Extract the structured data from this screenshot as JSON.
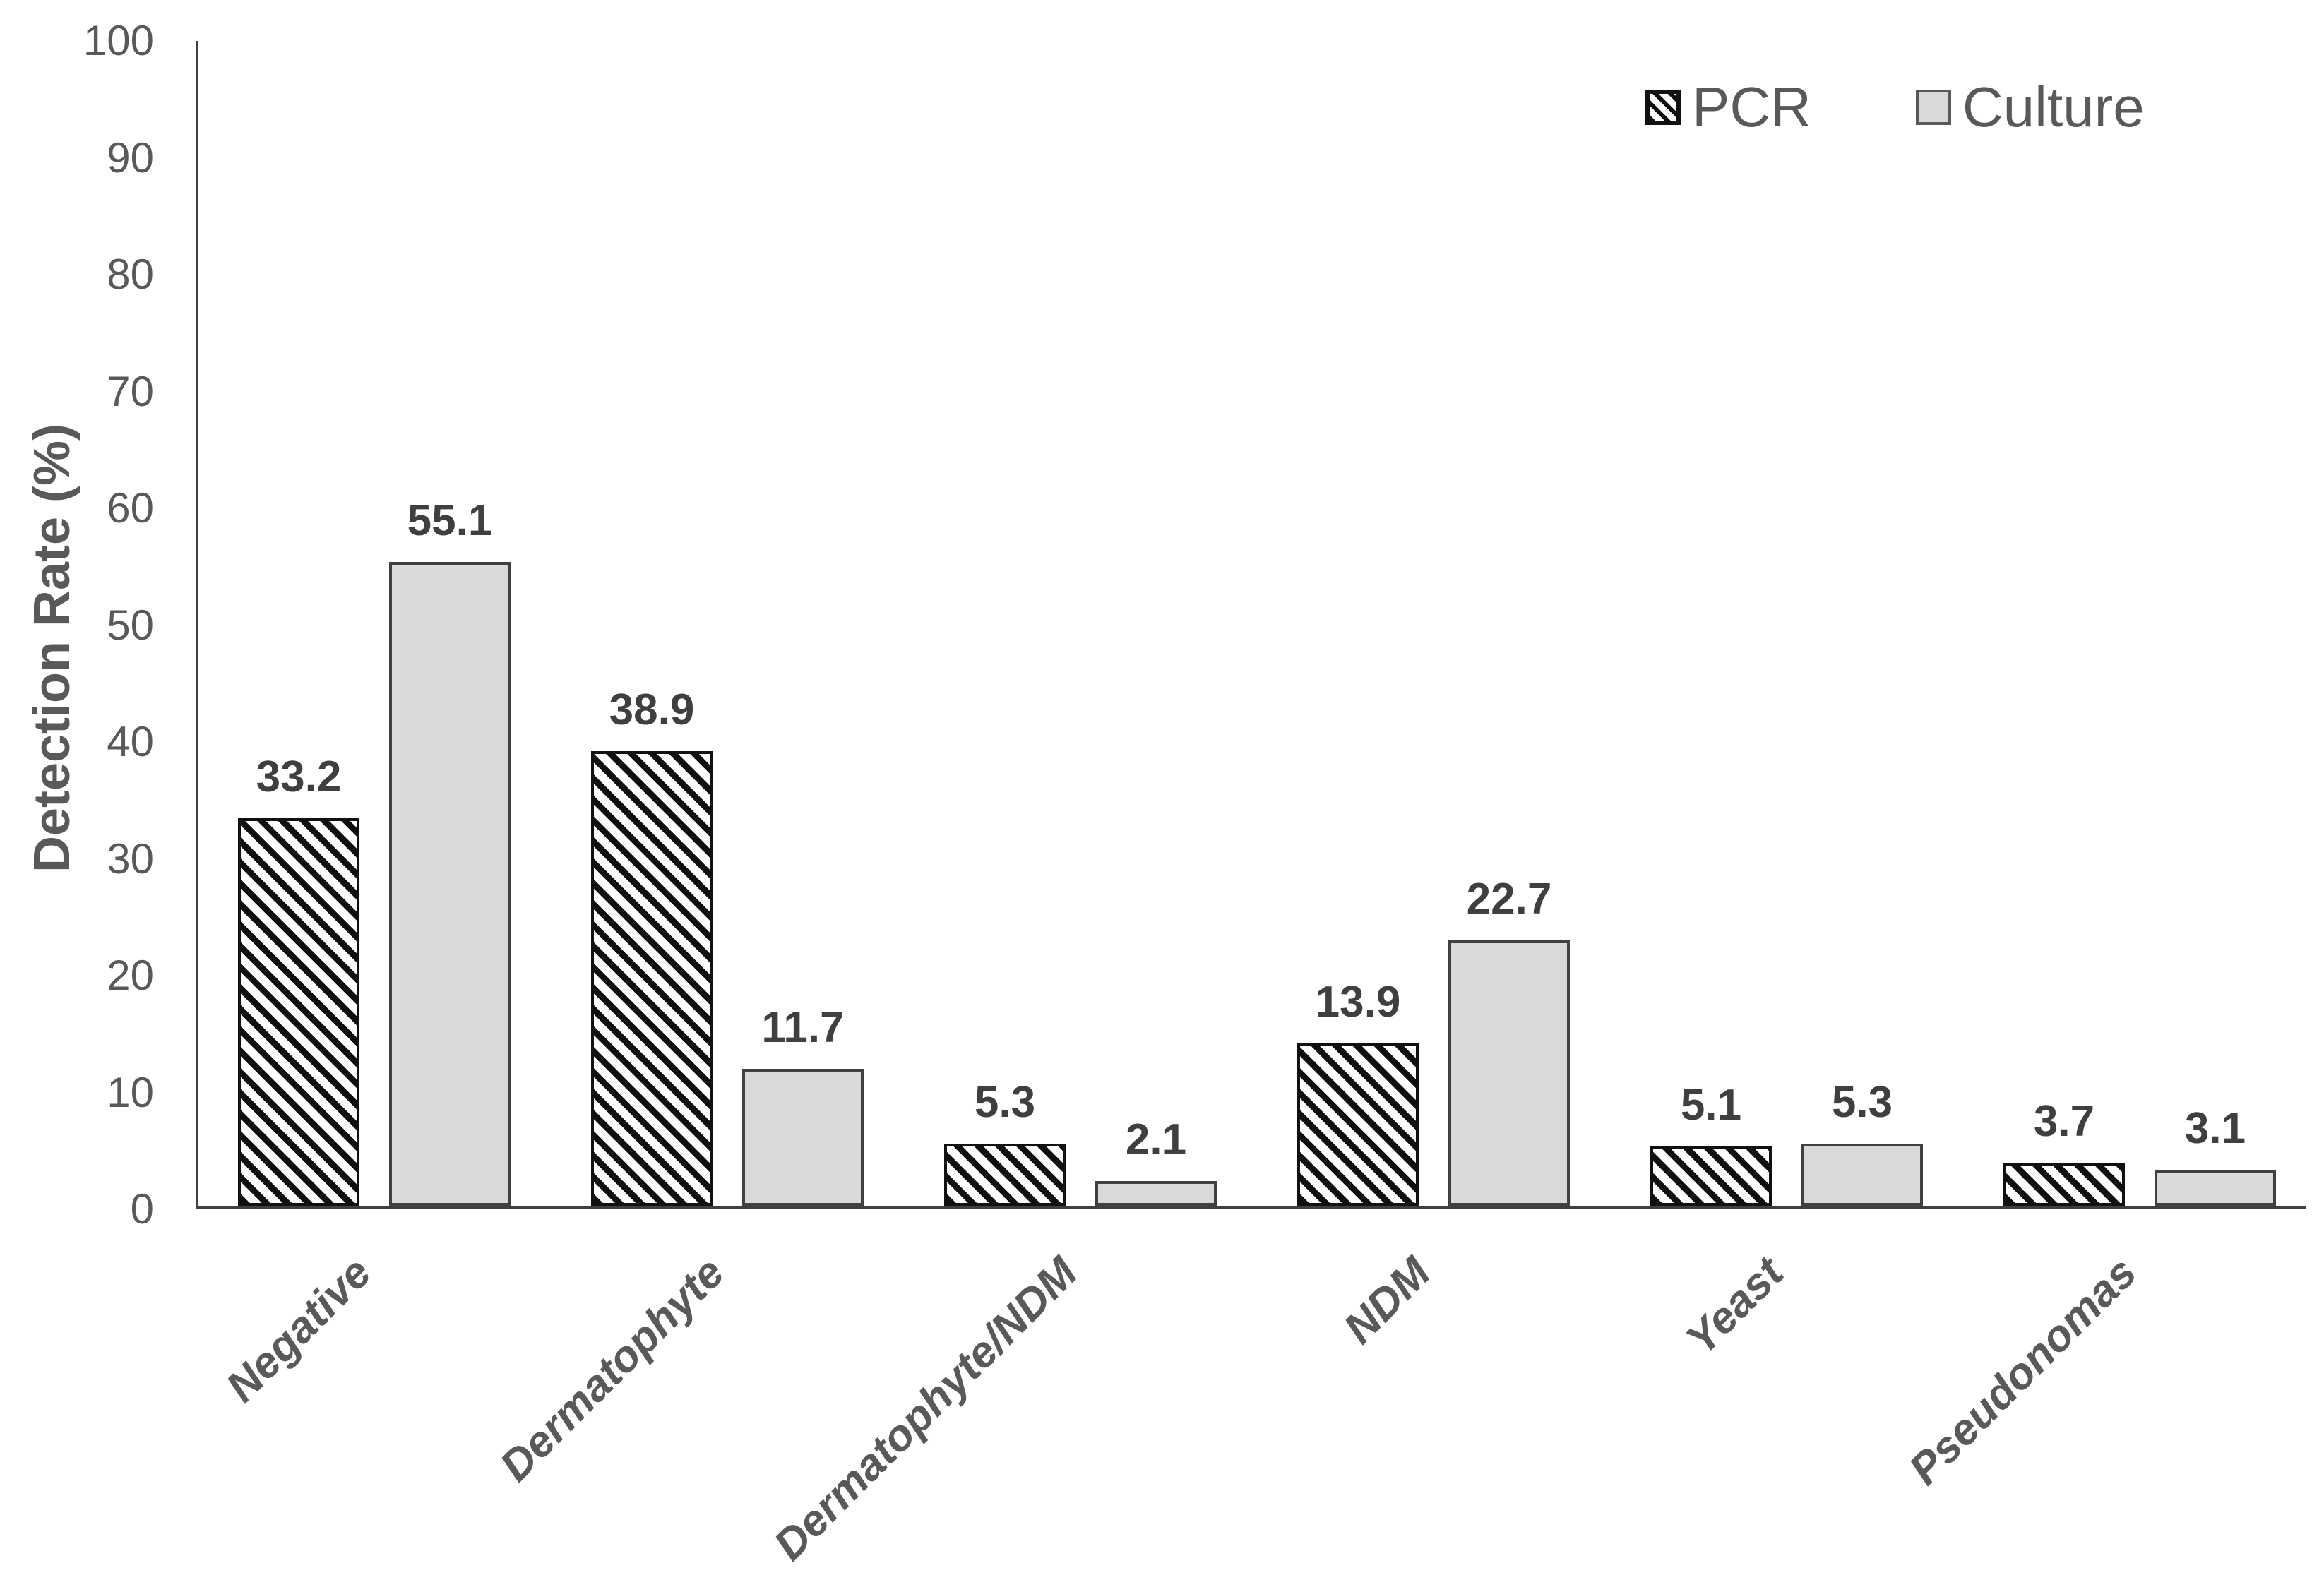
{
  "chart_data": {
    "type": "bar",
    "title": "",
    "xlabel": "",
    "ylabel": "Detection Rate (%)",
    "ylim": [
      0,
      100
    ],
    "ytick_step": 10,
    "yticks": [
      0,
      10,
      20,
      30,
      40,
      50,
      60,
      70,
      80,
      90,
      100
    ],
    "grid": false,
    "legend_position": "top-right",
    "categories": [
      "Negative",
      "Dermatophyte",
      "Dermatophyte/NDM",
      "NDM",
      "Yeast",
      "Pseudonomas"
    ],
    "series": [
      {
        "name": "PCR",
        "style": "black-diagonal-hatch",
        "values": [
          33.2,
          38.9,
          5.3,
          13.9,
          5.1,
          3.7
        ]
      },
      {
        "name": "Culture",
        "style": "solid",
        "fill": "#d9d9d9",
        "values": [
          55.1,
          11.7,
          2.1,
          22.7,
          5.3,
          3.1
        ]
      }
    ],
    "value_label_decimals": 1
  },
  "colors": {
    "axis": "#3f3f3f",
    "text_gray": "#595959",
    "value_label": "#3f3f3f",
    "culture_fill": "#d9d9d9",
    "hatch_ink": "#0f0f0f",
    "background": "#ffffff"
  }
}
